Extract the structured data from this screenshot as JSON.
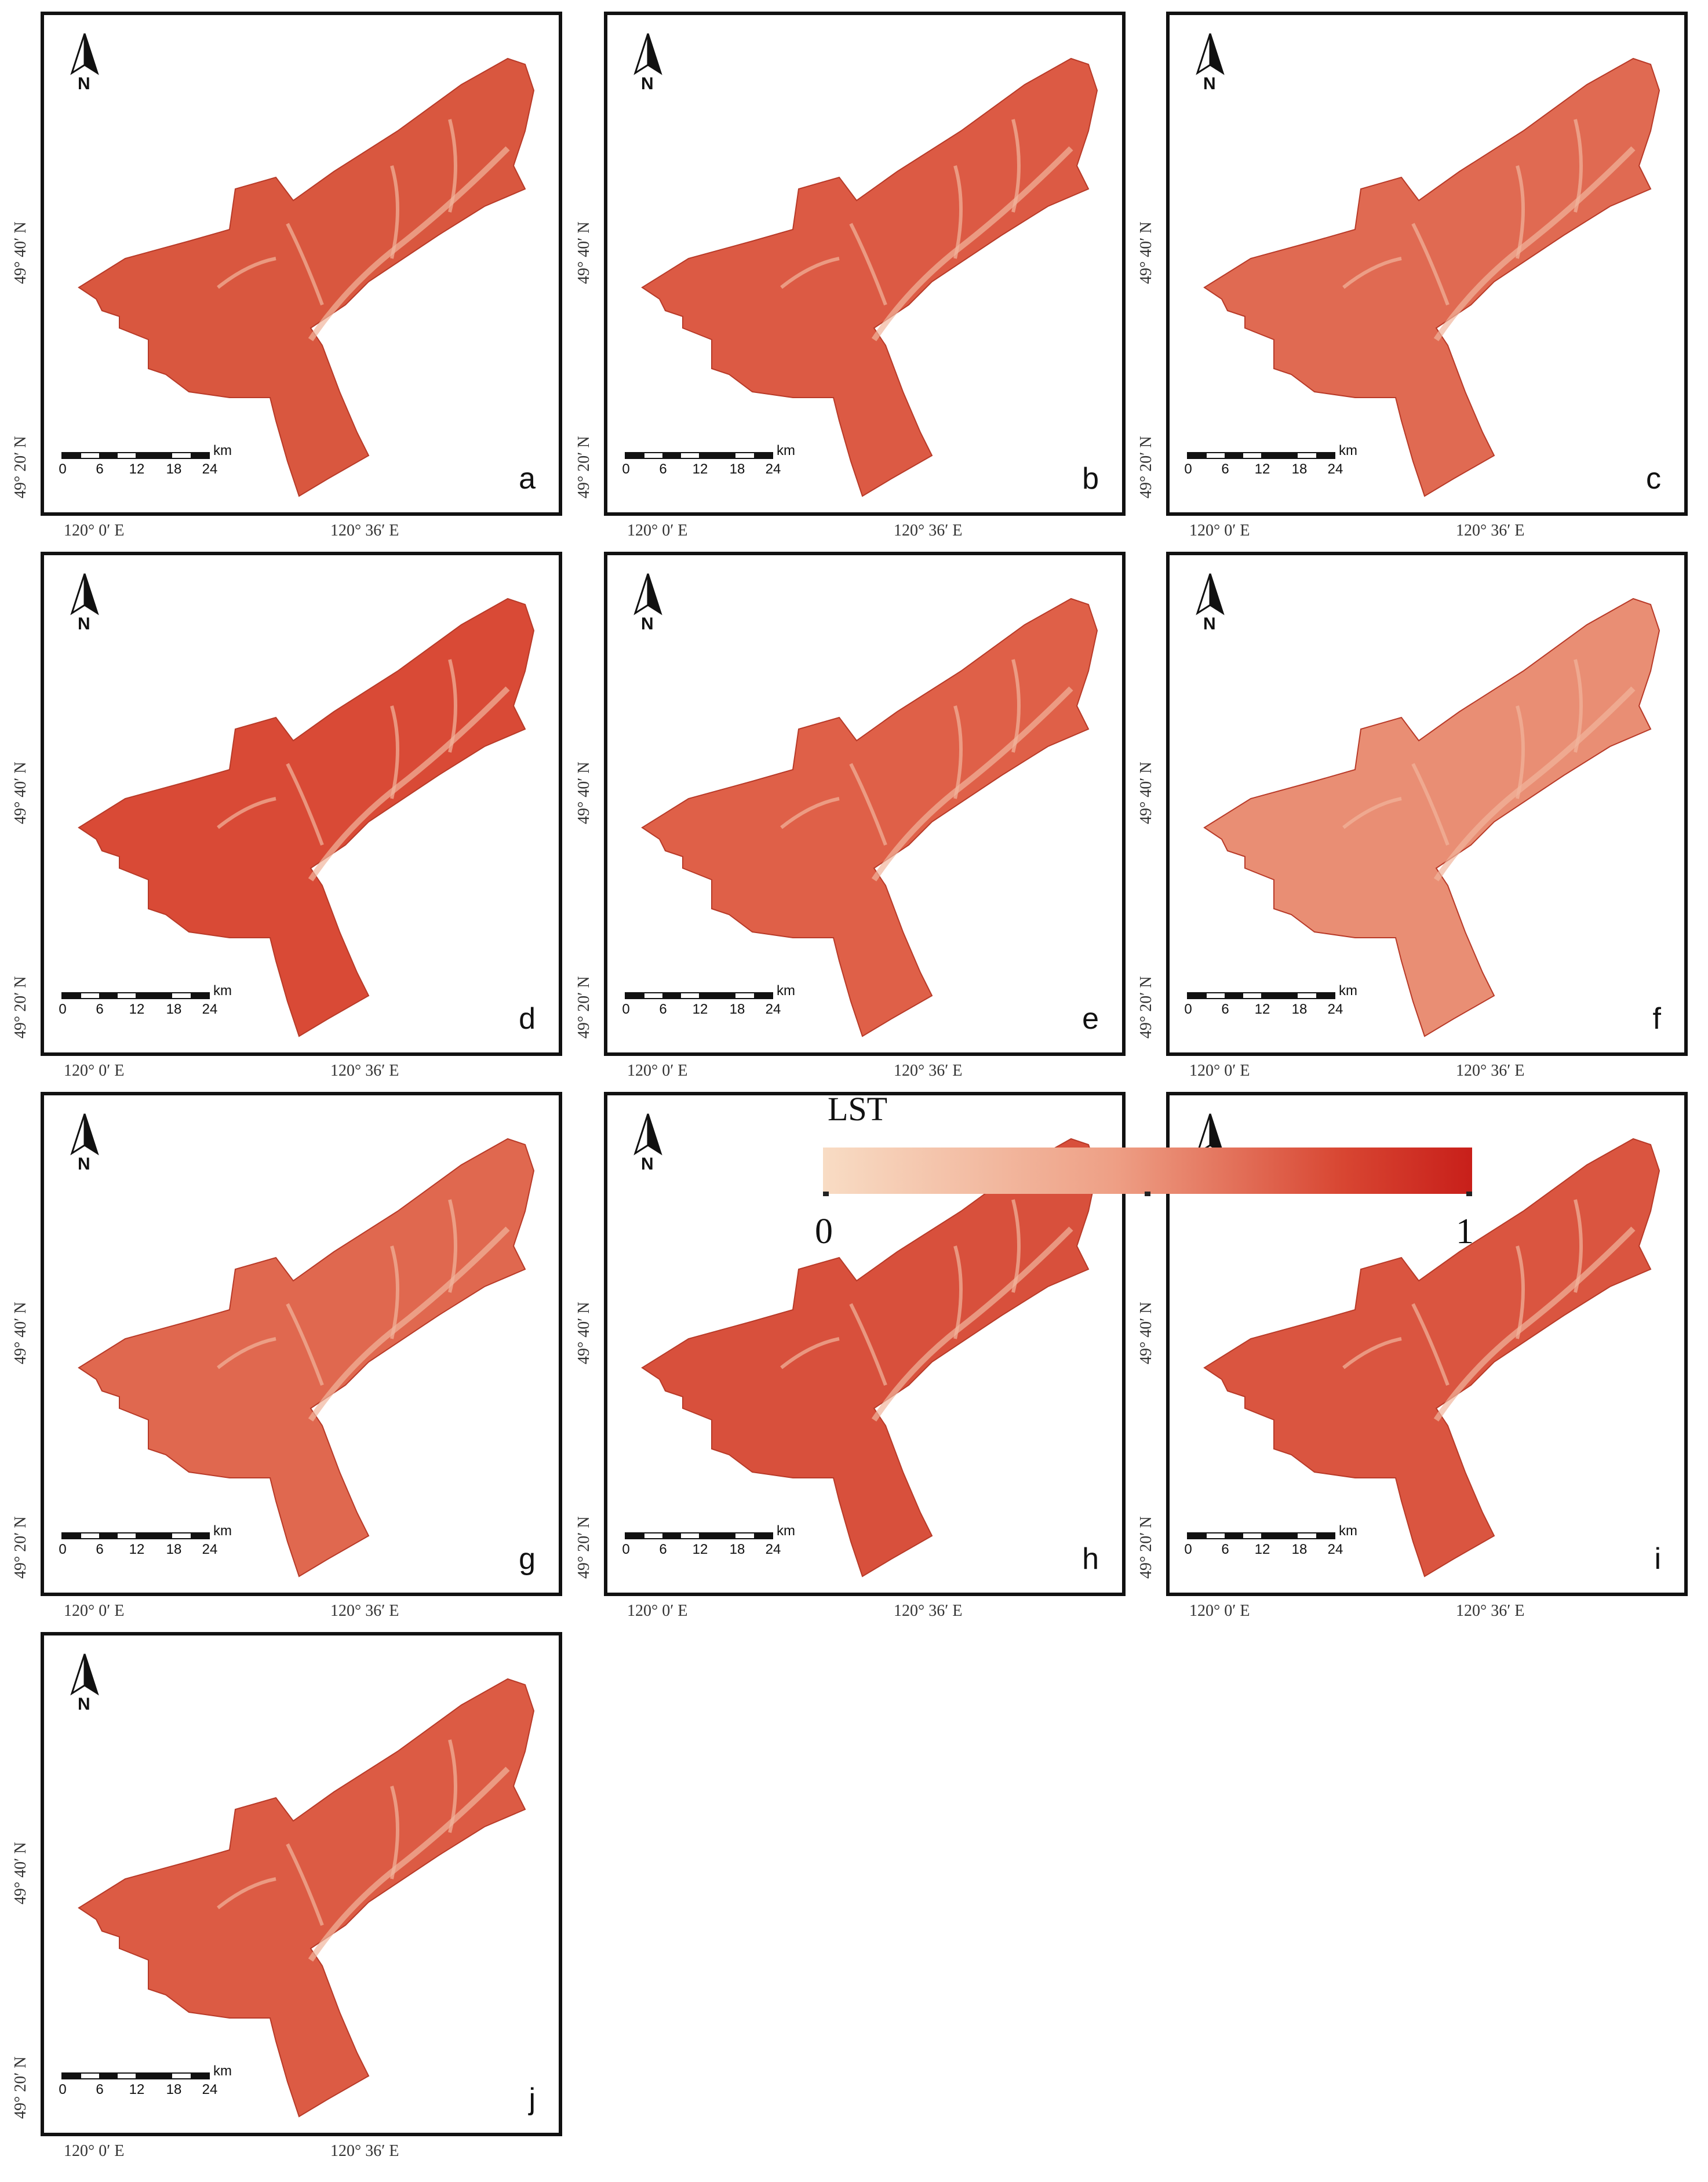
{
  "panels": [
    {
      "letter": "a"
    },
    {
      "letter": "b"
    },
    {
      "letter": "c"
    },
    {
      "letter": "d"
    },
    {
      "letter": "e"
    },
    {
      "letter": "f"
    },
    {
      "letter": "g"
    },
    {
      "letter": "h"
    },
    {
      "letter": "i"
    },
    {
      "letter": "j"
    }
  ],
  "axes": {
    "lat_labels": [
      "49° 40′ N",
      "49° 20′ N"
    ],
    "lon_labels": [
      "120° 0′ E",
      "120° 36′ E"
    ]
  },
  "scale_bar": {
    "unit": "km",
    "ticks": [
      "0",
      "6",
      "12",
      "18",
      "24"
    ]
  },
  "north_arrow": {
    "label": "N"
  },
  "legend": {
    "title": "LST",
    "min_label": "0",
    "max_label": "1",
    "colors": {
      "low": "#f8dcc4",
      "high": "#c81f1a"
    }
  },
  "colors": {
    "panel_fills": [
      "#d9573f",
      "#dc5a44",
      "#e06a52",
      "#d94a36",
      "#df6048",
      "#e98e74",
      "#e0684f",
      "#d8503c",
      "#da5540",
      "#dc5b44"
    ],
    "ridge": "#f1b59c"
  }
}
